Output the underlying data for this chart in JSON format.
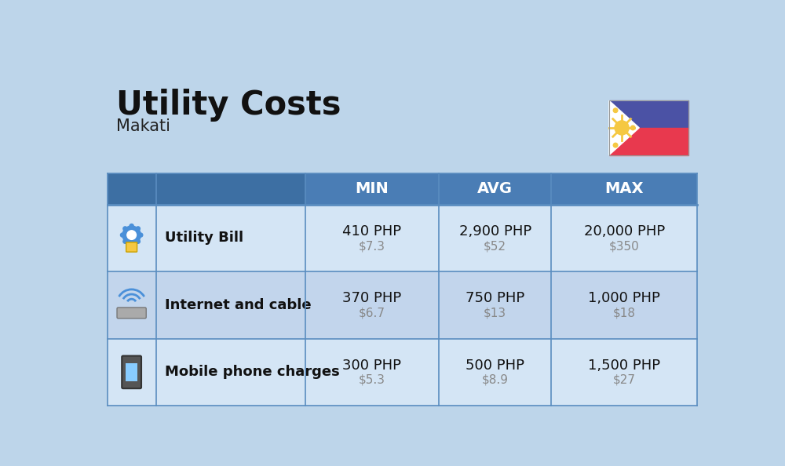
{
  "title": "Utility Costs",
  "subtitle": "Makati",
  "background_color": "#bdd5ea",
  "header_bg_color": "#4a7db5",
  "header_text_color": "#ffffff",
  "row_bg_color_1": "#d4e5f5",
  "row_bg_color_2": "#c2d5ec",
  "table_border_color": "#5a8dc0",
  "col_headers": [
    "MIN",
    "AVG",
    "MAX"
  ],
  "rows": [
    {
      "label": "Utility Bill",
      "min_php": "410 PHP",
      "min_usd": "$7.3",
      "avg_php": "2,900 PHP",
      "avg_usd": "$52",
      "max_php": "20,000 PHP",
      "max_usd": "$350"
    },
    {
      "label": "Internet and cable",
      "min_php": "370 PHP",
      "min_usd": "$6.7",
      "avg_php": "750 PHP",
      "avg_usd": "$13",
      "max_php": "1,000 PHP",
      "max_usd": "$18"
    },
    {
      "label": "Mobile phone charges",
      "min_php": "300 PHP",
      "min_usd": "$5.3",
      "avg_php": "500 PHP",
      "avg_usd": "$8.9",
      "max_php": "1,500 PHP",
      "max_usd": "$27"
    }
  ],
  "title_fontsize": 30,
  "subtitle_fontsize": 15,
  "label_fontsize": 13,
  "value_fontsize": 13,
  "usd_fontsize": 11,
  "header_fontsize": 14,
  "flag_blue": "#4b52a5",
  "flag_red": "#e8394e",
  "flag_sun": "#f5c842",
  "flag_white": "#ffffff"
}
